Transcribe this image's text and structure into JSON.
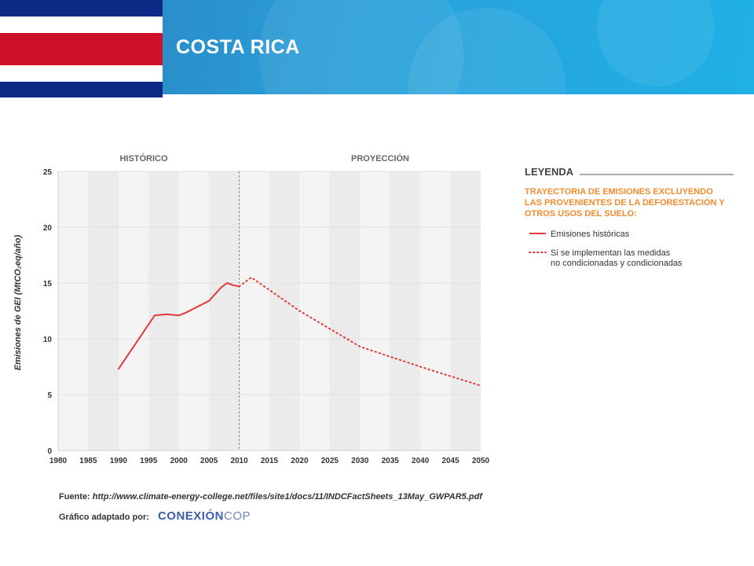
{
  "header": {
    "country": "COSTA RICA",
    "flag_colors": [
      "#0b2a86",
      "#ffffff",
      "#ce1126",
      "#ffffff",
      "#0b2a86"
    ]
  },
  "chart_data": {
    "type": "line",
    "section_labels": [
      "HISTÓRICO",
      "PROYECCIÓN"
    ],
    "ylabel": "Emisiones de GEI (MtCO₂eq/año)",
    "xlabel": "",
    "xlim": [
      1980,
      2050
    ],
    "ylim": [
      0,
      25
    ],
    "x_ticks": [
      1980,
      1985,
      1990,
      1995,
      2000,
      2005,
      2010,
      2015,
      2020,
      2025,
      2030,
      2035,
      2040,
      2045,
      2050
    ],
    "y_ticks": [
      0,
      5,
      10,
      15,
      20,
      25
    ],
    "divider_x": 2010,
    "grid": true,
    "series": [
      {
        "name": "Emisiones históricas",
        "style": "solid",
        "color": "#e03a3a",
        "x": [
          1990,
          1996,
          1998,
          2000,
          2001,
          2005,
          2007,
          2008,
          2009,
          2010
        ],
        "y": [
          7.3,
          12.1,
          12.2,
          12.1,
          12.3,
          13.4,
          14.6,
          15.0,
          14.8,
          14.7
        ]
      },
      {
        "name": "Si se implementan las medidas no condicionadas y condicionadas",
        "style": "dotted",
        "color": "#e03a3a",
        "x": [
          2010,
          2012,
          2020,
          2030,
          2040,
          2050
        ],
        "y": [
          14.7,
          15.5,
          12.5,
          9.3,
          7.5,
          5.8
        ]
      }
    ]
  },
  "legend": {
    "title": "LEYENDA",
    "subtitle_lines": [
      "TRAYECTORIA DE EMISIONES EXCLUYENDO",
      "LAS PROVENIENTES DE LA DEFORESTACIÓN Y",
      "OTROS USOS DEL SUELO:"
    ],
    "item1": "Emisiones históricas",
    "item2_lines": [
      "Si se implementan las medidas",
      "no condicionadas y condicionadas"
    ]
  },
  "source": {
    "label": "Fuente:",
    "url": "http://www.climate-energy-college.net/files/site1/docs/11/INDCFactSheets_13May_GWPAR5.pdf",
    "adapted_label": "Gráfico adaptado por:",
    "brand_bold": "CONEXIÓN",
    "brand_light": "COP"
  }
}
